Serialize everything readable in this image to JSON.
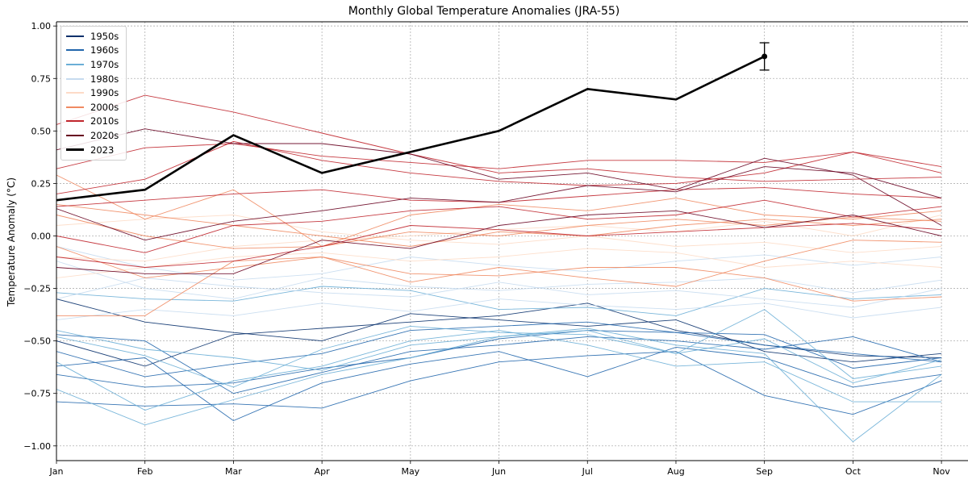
{
  "chart_data": {
    "type": "line",
    "title": "Monthly Global Temperature Anomalies (JRA-55)",
    "xlabel": "",
    "ylabel": "Temperature Anomaly (°C)",
    "categories": [
      "Jan",
      "Feb",
      "Mar",
      "Apr",
      "May",
      "Jun",
      "Jul",
      "Aug",
      "Sep",
      "Oct",
      "Nov"
    ],
    "x_visible_range": [
      0,
      10.3
    ],
    "ylim": [
      -1.07,
      1.02
    ],
    "yticks": [
      1.0,
      0.75,
      0.5,
      0.25,
      0.0,
      -0.25,
      -0.5,
      -0.75,
      -1.0
    ],
    "ytick_labels": [
      "1.00",
      "0.75",
      "0.50",
      "0.25",
      "0.00",
      "−0.25",
      "−0.50",
      "−0.75",
      "−1.00"
    ],
    "grid": true,
    "legend_position": "top-left",
    "legend": [
      {
        "label": "1950s",
        "color": "#08306b"
      },
      {
        "label": "1960s",
        "color": "#2166ac"
      },
      {
        "label": "1970s",
        "color": "#6aaed6"
      },
      {
        "label": "1980s",
        "color": "#c6dbef"
      },
      {
        "label": "1990s",
        "color": "#fddbc7"
      },
      {
        "label": "2000s",
        "color": "#f08a62"
      },
      {
        "label": "2010s",
        "color": "#c0262d"
      },
      {
        "label": "2020s",
        "color": "#67001f"
      },
      {
        "label": "2023",
        "color": "#000000"
      }
    ],
    "series": [
      {
        "name": "1950s",
        "color": "#08306b",
        "values": [
          -0.5,
          -0.62,
          -0.47,
          -0.44,
          -0.41,
          -0.38,
          -0.32,
          -0.45,
          -0.52,
          -0.57,
          -0.58
        ]
      },
      {
        "name": "1950s",
        "color": "#08306b",
        "values": [
          -0.3,
          -0.41,
          -0.46,
          -0.5,
          -0.37,
          -0.4,
          -0.43,
          -0.4,
          -0.55,
          -0.6,
          -0.56
        ]
      },
      {
        "name": "1960s",
        "color": "#2166ac",
        "values": [
          -0.66,
          -0.72,
          -0.7,
          -0.63,
          -0.58,
          -0.49,
          -0.45,
          -0.46,
          -0.52,
          -0.56,
          -0.6
        ]
      },
      {
        "name": "1960s",
        "color": "#2166ac",
        "values": [
          -0.79,
          -0.81,
          -0.8,
          -0.82,
          -0.69,
          -0.6,
          -0.57,
          -0.55,
          -0.76,
          -0.85,
          -0.69
        ]
      },
      {
        "name": "1960s",
        "color": "#2166ac",
        "values": [
          -0.62,
          -0.58,
          -0.88,
          -0.7,
          -0.61,
          -0.55,
          -0.67,
          -0.53,
          -0.58,
          -0.72,
          -0.66
        ]
      },
      {
        "name": "1960s",
        "color": "#2166ac",
        "values": [
          -0.47,
          -0.5,
          -0.75,
          -0.65,
          -0.55,
          -0.52,
          -0.48,
          -0.5,
          -0.54,
          -0.48,
          -0.6
        ]
      },
      {
        "name": "1960s",
        "color": "#2166ac",
        "values": [
          -0.55,
          -0.67,
          -0.61,
          -0.56,
          -0.45,
          -0.43,
          -0.41,
          -0.46,
          -0.47,
          -0.63,
          -0.58
        ]
      },
      {
        "name": "1970s",
        "color": "#6aaed6",
        "values": [
          -0.45,
          -0.54,
          -0.58,
          -0.64,
          -0.52,
          -0.48,
          -0.45,
          -0.56,
          -0.49,
          -0.7,
          -0.59
        ]
      },
      {
        "name": "1970s",
        "color": "#6aaed6",
        "values": [
          -0.73,
          -0.9,
          -0.78,
          -0.66,
          -0.58,
          -0.48,
          -0.44,
          -0.52,
          -0.56,
          -0.98,
          -0.66
        ]
      },
      {
        "name": "1970s",
        "color": "#6aaed6",
        "values": [
          -0.27,
          -0.3,
          -0.31,
          -0.24,
          -0.26,
          -0.35,
          -0.34,
          -0.38,
          -0.25,
          -0.3,
          -0.28
        ]
      },
      {
        "name": "1970s",
        "color": "#6aaed6",
        "values": [
          -0.6,
          -0.83,
          -0.69,
          -0.62,
          -0.5,
          -0.45,
          -0.52,
          -0.62,
          -0.6,
          -0.79,
          -0.79
        ]
      },
      {
        "name": "1970s",
        "color": "#6aaed6",
        "values": [
          -0.48,
          -0.57,
          -0.72,
          -0.54,
          -0.43,
          -0.46,
          -0.47,
          -0.56,
          -0.35,
          -0.68,
          -0.62
        ]
      },
      {
        "name": "1980s",
        "color": "#c6dbef",
        "values": [
          -0.12,
          -0.25,
          -0.3,
          -0.2,
          -0.24,
          -0.26,
          -0.23,
          -0.22,
          -0.2,
          -0.27,
          -0.21
        ]
      },
      {
        "name": "1980s",
        "color": "#c6dbef",
        "values": [
          -0.4,
          -0.35,
          -0.38,
          -0.32,
          -0.36,
          -0.3,
          -0.33,
          -0.35,
          -0.32,
          -0.39,
          -0.34
        ]
      },
      {
        "name": "1980s",
        "color": "#c6dbef",
        "values": [
          -0.05,
          -0.15,
          -0.21,
          -0.18,
          -0.1,
          -0.14,
          -0.17,
          -0.12,
          -0.09,
          -0.14,
          -0.1
        ]
      },
      {
        "name": "1980s",
        "color": "#c6dbef",
        "values": [
          -0.3,
          -0.2,
          -0.24,
          -0.27,
          -0.29,
          -0.22,
          -0.28,
          -0.26,
          -0.3,
          -0.34,
          -0.25
        ]
      },
      {
        "name": "1990s",
        "color": "#fddbc7",
        "values": [
          -0.1,
          -0.12,
          -0.05,
          -0.02,
          0.0,
          0.03,
          0.05,
          0.02,
          0.07,
          0.0,
          0.1
        ]
      },
      {
        "name": "1990s",
        "color": "#fddbc7",
        "values": [
          0.05,
          0.08,
          0.1,
          0.02,
          -0.02,
          -0.04,
          0.0,
          -0.05,
          -0.03,
          -0.08,
          -0.05
        ]
      },
      {
        "name": "1990s",
        "color": "#fddbc7",
        "values": [
          -0.2,
          -0.15,
          -0.1,
          -0.08,
          -0.12,
          -0.1,
          -0.06,
          -0.08,
          -0.15,
          -0.12,
          -0.15
        ]
      },
      {
        "name": "2000s",
        "color": "#f08a62",
        "values": [
          0.29,
          0.08,
          0.22,
          -0.05,
          0.1,
          0.15,
          0.12,
          0.18,
          0.1,
          0.08,
          0.12
        ]
      },
      {
        "name": "2000s",
        "color": "#f08a62",
        "values": [
          -0.38,
          -0.38,
          -0.12,
          -0.1,
          -0.18,
          -0.19,
          -0.15,
          -0.15,
          -0.2,
          -0.31,
          -0.29
        ]
      },
      {
        "name": "2000s",
        "color": "#f08a62",
        "values": [
          0.1,
          0.0,
          -0.06,
          -0.05,
          0.02,
          0.0,
          0.05,
          0.08,
          0.05,
          0.09,
          0.07
        ]
      },
      {
        "name": "2000s",
        "color": "#f08a62",
        "values": [
          -0.05,
          -0.2,
          -0.15,
          -0.1,
          -0.22,
          -0.15,
          -0.2,
          -0.24,
          -0.12,
          -0.02,
          -0.03
        ]
      },
      {
        "name": "2000s",
        "color": "#f08a62",
        "values": [
          0.15,
          0.1,
          0.05,
          0.0,
          -0.05,
          0.02,
          0.0,
          0.05,
          0.08,
          0.05,
          0.08
        ]
      },
      {
        "name": "2010s",
        "color": "#c0262d",
        "values": [
          0.32,
          0.42,
          0.44,
          0.38,
          0.35,
          0.32,
          0.36,
          0.36,
          0.35,
          0.4,
          0.33
        ]
      },
      {
        "name": "2010s",
        "color": "#c0262d",
        "values": [
          0.14,
          0.17,
          0.2,
          0.22,
          0.17,
          0.16,
          0.19,
          0.22,
          0.23,
          0.2,
          0.18
        ]
      },
      {
        "name": "2010s",
        "color": "#c0262d",
        "values": [
          -0.1,
          -0.15,
          -0.12,
          -0.05,
          0.05,
          0.03,
          0.0,
          0.02,
          0.04,
          0.06,
          0.03
        ]
      },
      {
        "name": "2010s",
        "color": "#c0262d",
        "values": [
          0.2,
          0.27,
          0.45,
          0.36,
          0.3,
          0.26,
          0.24,
          0.25,
          0.3,
          0.4,
          0.3
        ]
      },
      {
        "name": "2010s",
        "color": "#c0262d",
        "values": [
          0.53,
          0.67,
          0.59,
          0.49,
          0.39,
          0.3,
          0.32,
          0.28,
          0.26,
          0.27,
          0.28
        ]
      },
      {
        "name": "2010s",
        "color": "#c0262d",
        "values": [
          0.0,
          -0.08,
          0.05,
          0.07,
          0.12,
          0.14,
          0.08,
          0.1,
          0.17,
          0.09,
          0.14
        ]
      },
      {
        "name": "2020s",
        "color": "#67001f",
        "values": [
          0.41,
          0.51,
          0.44,
          0.44,
          0.39,
          0.27,
          0.3,
          0.22,
          0.37,
          0.29,
          0.05
        ]
      },
      {
        "name": "2020s",
        "color": "#67001f",
        "values": [
          0.13,
          -0.02,
          0.07,
          0.12,
          0.18,
          0.16,
          0.24,
          0.21,
          0.33,
          0.3,
          0.18
        ]
      },
      {
        "name": "2020s",
        "color": "#67001f",
        "values": [
          -0.15,
          -0.18,
          -0.18,
          -0.02,
          -0.06,
          0.05,
          0.1,
          0.12,
          0.04,
          0.1,
          0.0
        ]
      },
      {
        "name": "2023",
        "color": "#000000",
        "values": [
          0.17,
          0.22,
          0.48,
          0.3,
          0.4,
          0.5,
          0.7,
          0.65,
          0.855,
          null,
          null
        ]
      }
    ],
    "highlight_errorbar": {
      "series": "2023",
      "category": "Sep",
      "value": 0.855,
      "lower": 0.79,
      "upper": 0.92
    }
  }
}
